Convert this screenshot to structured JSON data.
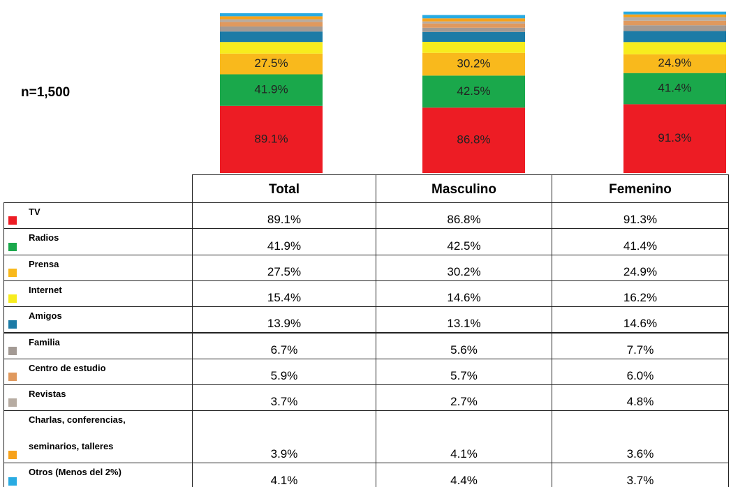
{
  "chart_data": {
    "type": "bar",
    "stacked": true,
    "annotation": "n=1,500",
    "categories": [
      "Total",
      "Masculino",
      "Femenino"
    ],
    "series": [
      {
        "name": "TV",
        "color": "#ed1c24",
        "values": [
          89.1,
          86.8,
          91.3
        ],
        "value_labels": [
          "89.1%",
          "86.8%",
          "91.3%"
        ]
      },
      {
        "name": "Radios",
        "color": "#1aa84b",
        "values": [
          41.9,
          42.5,
          41.4
        ],
        "value_labels": [
          "41.9%",
          "42.5%",
          "41.4%"
        ]
      },
      {
        "name": "Prensa",
        "color": "#f9b91c",
        "values": [
          27.5,
          30.2,
          24.9
        ],
        "value_labels": [
          "27.5%",
          "30.2%",
          "24.9%"
        ]
      },
      {
        "name": "Internet",
        "color": "#f7ec1e",
        "values": [
          15.4,
          14.6,
          16.2
        ],
        "value_labels": [
          "15.4%",
          "14.6%",
          "16.2%"
        ]
      },
      {
        "name": "Amigos",
        "color": "#1c7ba6",
        "values": [
          13.9,
          13.1,
          14.6
        ],
        "value_labels": [
          "13.9%",
          "13.1%",
          "14.6%"
        ]
      },
      {
        "name": "Familia",
        "color": "#a39a94",
        "values": [
          6.7,
          5.6,
          7.7
        ],
        "value_labels": [
          "6.7%",
          "5.6%",
          "7.7%"
        ]
      },
      {
        "name": "Centro de estudio",
        "color": "#e0995e",
        "values": [
          5.9,
          5.7,
          6.0
        ],
        "value_labels": [
          "5.9%",
          "5.7%",
          "6.0%"
        ]
      },
      {
        "name": "Revistas",
        "color": "#b7aca2",
        "values": [
          3.7,
          2.7,
          4.8
        ],
        "value_labels": [
          "3.7%",
          "2.7%",
          "4.8%"
        ]
      },
      {
        "name": "Charlas, conferencias,\nseminarios, talleres",
        "color": "#f7a21b",
        "values": [
          3.9,
          4.1,
          3.6
        ],
        "value_labels": [
          "3.9%",
          "4.1%",
          "3.6%"
        ]
      },
      {
        "name": "Otros (Menos del 2%)",
        "color": "#29abe2",
        "values": [
          4.1,
          4.4,
          3.7
        ],
        "value_labels": [
          "4.1%",
          "4.4%",
          "3.7%"
        ]
      }
    ]
  }
}
